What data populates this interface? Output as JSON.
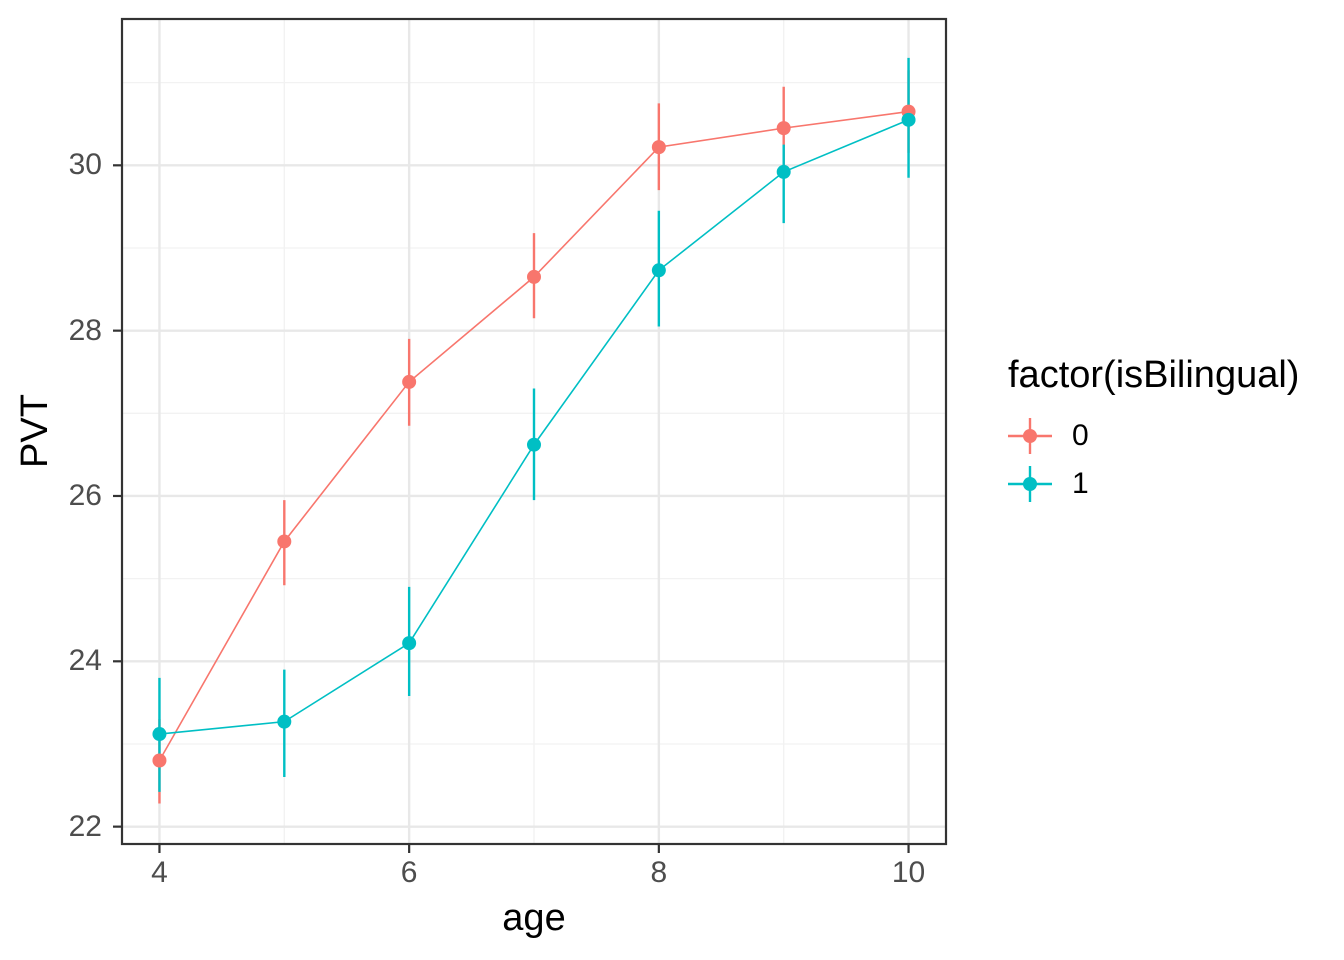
{
  "chart_data": {
    "type": "line",
    "title": "",
    "xlabel": "age",
    "ylabel": "PVT",
    "x": [
      4,
      5,
      6,
      7,
      8,
      9,
      10
    ],
    "series": [
      {
        "name": "0",
        "color": "#F8766D",
        "values": [
          22.8,
          25.45,
          27.38,
          28.65,
          30.22,
          30.45,
          30.65
        ],
        "ymin": [
          22.28,
          24.92,
          26.85,
          28.15,
          29.7,
          29.95,
          30.15
        ],
        "ymax": [
          23.3,
          25.95,
          27.9,
          29.18,
          30.75,
          30.95,
          31.15
        ]
      },
      {
        "name": "1",
        "color": "#00BFC4",
        "values": [
          23.12,
          23.27,
          24.22,
          26.62,
          28.73,
          29.92,
          30.55
        ],
        "ymin": [
          22.42,
          22.6,
          23.58,
          25.95,
          28.05,
          29.3,
          29.85
        ],
        "ymax": [
          23.8,
          23.9,
          24.9,
          27.3,
          29.45,
          30.25,
          31.3
        ]
      }
    ],
    "x_ticks": [
      4,
      6,
      8,
      10
    ],
    "x_minor": [
      5,
      7,
      9
    ],
    "y_ticks": [
      22,
      24,
      26,
      28,
      30
    ],
    "y_minor": [
      23,
      25,
      27,
      29,
      31
    ],
    "xlim": [
      3.7,
      10.3
    ],
    "ylim": [
      21.79,
      31.77
    ],
    "grid": true,
    "legend_position": "right",
    "marker": "circle-with-errorbar"
  },
  "legend": {
    "title": "factor(isBilingual)",
    "entries": [
      "0",
      "1"
    ]
  },
  "colors": {
    "panel_border": "#333333",
    "grid_major": "#e8e8e8",
    "grid_minor": "#f2f2f2",
    "tick_mark": "#333333",
    "tick_label": "#4d4d4d",
    "series0": "#F8766D",
    "series1": "#00BFC4",
    "background": "#ffffff"
  }
}
